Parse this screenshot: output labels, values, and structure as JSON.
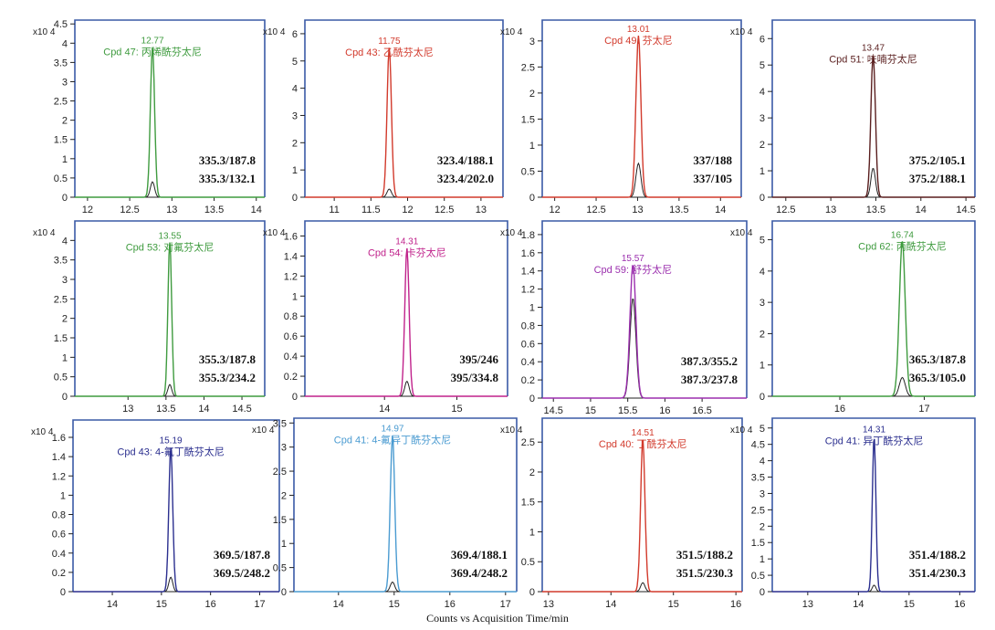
{
  "xaxis_title": "Counts vs Acquisition Time/min",
  "colors": {
    "frame": "#3a5aa6",
    "secondary_trace": "#222222"
  },
  "chart_data": [
    {
      "type": "line",
      "compound": "Cpd 47: 丙烯酰芬太尼",
      "color": "#3f9b3f",
      "rt": 12.77,
      "rt_label": "12.77",
      "scale_label": "x10 4",
      "xlim": [
        11.85,
        14.1
      ],
      "ylim": [
        0,
        4.6
      ],
      "xticks": [
        12,
        12.5,
        13,
        13.5,
        14
      ],
      "xtick_labels": [
        "12",
        "12.5",
        "13",
        "13.5",
        "14"
      ],
      "yticks": [
        0,
        0.5,
        1,
        1.5,
        2,
        2.5,
        3,
        3.5,
        4,
        4.5
      ],
      "ytick_labels": [
        "0",
        "0.5",
        "1",
        "1.5",
        "2",
        "2.5",
        "3",
        "3.5",
        "4",
        "4.5"
      ],
      "transitions": [
        "335.3/187.8",
        "335.3/132.1"
      ],
      "peaks": [
        3.9,
        0.4
      ],
      "width": 0.025
    },
    {
      "type": "line",
      "compound": "Cpd 43: 乙酰芬太尼",
      "color": "#d23a2c",
      "rt": 11.75,
      "rt_label": "11.75",
      "scale_label": "x10 4",
      "xlim": [
        10.6,
        13.3
      ],
      "ylim": [
        0,
        6.5
      ],
      "xticks": [
        11,
        11.5,
        12,
        12.5,
        13
      ],
      "xtick_labels": [
        "11",
        "11.5",
        "12",
        "12.5",
        "13"
      ],
      "yticks": [
        0,
        1,
        2,
        3,
        4,
        5,
        6
      ],
      "ytick_labels": [
        "0",
        "1",
        "2",
        "3",
        "4",
        "5",
        "6"
      ],
      "transitions": [
        "323.4/188.1",
        "323.4/202.0"
      ],
      "peaks": [
        5.5,
        0.3
      ],
      "width": 0.03
    },
    {
      "type": "line",
      "compound": "Cpd 49: 芬太尼",
      "color": "#d23a2c",
      "rt": 13.01,
      "rt_label": "13.01",
      "scale_label": "x10 4",
      "xlim": [
        11.85,
        14.25
      ],
      "ylim": [
        0,
        3.4
      ],
      "xticks": [
        12,
        12.5,
        13,
        13.5,
        14
      ],
      "xtick_labels": [
        "12",
        "12.5",
        "13",
        "13.5",
        "14"
      ],
      "yticks": [
        0,
        0.5,
        1,
        1.5,
        2,
        2.5,
        3
      ],
      "ytick_labels": [
        "0",
        "0.5",
        "1",
        "1.5",
        "2",
        "2.5",
        "3"
      ],
      "transitions": [
        "337/188",
        "337/105"
      ],
      "peaks": [
        3.1,
        0.65
      ],
      "width": 0.03
    },
    {
      "type": "line",
      "compound": "Cpd 51: 呋喃芬太尼",
      "color": "#5a1f1f",
      "rt": 13.47,
      "rt_label": "13.47",
      "scale_label": "x10 4",
      "xlim": [
        12.35,
        14.6
      ],
      "ylim": [
        0,
        6.7
      ],
      "xticks": [
        12.5,
        13,
        13.5,
        14,
        14.5
      ],
      "xtick_labels": [
        "12.5",
        "13",
        "13.5",
        "14",
        "14.5"
      ],
      "yticks": [
        0,
        1,
        2,
        3,
        4,
        5,
        6
      ],
      "ytick_labels": [
        "0",
        "1",
        "2",
        "3",
        "4",
        "5",
        "6"
      ],
      "transitions": [
        "375.2/105.1",
        "375.2/188.1"
      ],
      "peaks": [
        5.4,
        1.1
      ],
      "width": 0.025
    },
    {
      "type": "line",
      "compound": "Cpd 53: 对氟芬太尼",
      "color": "#3f9b3f",
      "rt": 13.55,
      "rt_label": "13.55",
      "scale_label": "x10 4",
      "xlim": [
        12.3,
        14.8
      ],
      "ylim": [
        0,
        4.5
      ],
      "xticks": [
        13,
        13.5,
        14,
        14.5
      ],
      "xtick_labels": [
        "13",
        "13.5",
        "14",
        "14.5"
      ],
      "yticks": [
        0,
        0.5,
        1,
        1.5,
        2,
        2.5,
        3,
        3.5,
        4
      ],
      "ytick_labels": [
        "0",
        "0.5",
        "1",
        "1.5",
        "2",
        "2.5",
        "3",
        "3.5",
        "4"
      ],
      "transitions": [
        "355.3/187.8",
        "355.3/234.2"
      ],
      "peaks": [
        3.95,
        0.3
      ],
      "width": 0.025
    },
    {
      "type": "line",
      "compound": "Cpd 54: 卡芬太尼",
      "color": "#c0228b",
      "rt": 14.31,
      "rt_label": "14.31",
      "scale_label": "x10 4",
      "xlim": [
        12.9,
        15.7
      ],
      "ylim": [
        0,
        1.75
      ],
      "xticks": [
        14,
        15
      ],
      "xtick_labels": [
        "14",
        "15"
      ],
      "yticks": [
        0,
        0.2,
        0.4,
        0.6,
        0.8,
        1,
        1.2,
        1.4,
        1.6
      ],
      "ytick_labels": [
        "0",
        "0.2",
        "0.4",
        "0.6",
        "0.8",
        "1",
        "1.2",
        "1.4",
        "1.6"
      ],
      "transitions": [
        "395/246",
        "395/334.8"
      ],
      "peaks": [
        1.48,
        0.15
      ],
      "width": 0.03
    },
    {
      "type": "line",
      "compound": "Cpd 59: 舒芬太尼",
      "color": "#9b2fae",
      "rt": 15.57,
      "rt_label": "15.57",
      "scale_label": "x10 4",
      "xlim": [
        14.35,
        17.1
      ],
      "ylim": [
        0,
        1.95
      ],
      "xticks": [
        14.5,
        15,
        15.5,
        16,
        16.5
      ],
      "xtick_labels": [
        "14.5",
        "15",
        "15.5",
        "16",
        "16.5"
      ],
      "yticks": [
        0,
        0.2,
        0.4,
        0.6,
        0.8,
        1,
        1.2,
        1.4,
        1.6,
        1.8
      ],
      "ytick_labels": [
        "0",
        "0.2",
        "0.4",
        "0.6",
        "0.8",
        "1",
        "1.2",
        "1.4",
        "1.6",
        "1.8"
      ],
      "transitions": [
        "387.3/355.2",
        "387.3/237.8"
      ],
      "peaks": [
        1.47,
        1.1
      ],
      "width": 0.04
    },
    {
      "type": "line",
      "compound": "Cpd 62: 丙酰芬太尼",
      "color": "#3f9b3f",
      "rt": 16.74,
      "rt_label": "16.74",
      "scale_label": "x10 4",
      "xlim": [
        15.2,
        17.6
      ],
      "ylim": [
        0,
        5.6
      ],
      "xticks": [
        16,
        17
      ],
      "xtick_labels": [
        "16",
        "17"
      ],
      "yticks": [
        0,
        1,
        2,
        3,
        4,
        5
      ],
      "ytick_labels": [
        "0",
        "1",
        "2",
        "3",
        "4",
        "5"
      ],
      "transitions": [
        "365.3/187.8",
        "365.3/105.0"
      ],
      "peaks": [
        4.95,
        0.6
      ],
      "width": 0.035
    },
    {
      "type": "line",
      "compound": "Cpd 43: 4-氟丁酰芬太尼",
      "color": "#2b2f8f",
      "rt": 15.19,
      "rt_label": "15.19",
      "scale_label": "x10 4",
      "xlim": [
        13.2,
        17.4
      ],
      "ylim": [
        0,
        1.78
      ],
      "xticks": [
        14,
        15,
        16,
        17
      ],
      "xtick_labels": [
        "14",
        "15",
        "16",
        "17"
      ],
      "yticks": [
        0,
        0.2,
        0.4,
        0.6,
        0.8,
        1,
        1.2,
        1.4,
        1.6
      ],
      "ytick_labels": [
        "0",
        "0.2",
        "0.4",
        "0.6",
        "0.8",
        "1",
        "1.2",
        "1.4",
        "1.6"
      ],
      "transitions": [
        "369.5/187.8",
        "369.5/248.2"
      ],
      "peaks": [
        1.5,
        0.15
      ],
      "width": 0.04
    },
    {
      "type": "line",
      "compound": "Cpd 41: 4-氟异丁酰芬太尼",
      "color": "#4a9bd1",
      "rt": 14.97,
      "rt_label": "14.97",
      "scale_label": "x10 4",
      "xlim": [
        13.2,
        17.2
      ],
      "ylim": [
        0,
        3.6
      ],
      "xticks": [
        14,
        15,
        16,
        17
      ],
      "xtick_labels": [
        "14",
        "15",
        "16",
        "17"
      ],
      "yticks": [
        0,
        0.5,
        1,
        1.5,
        2,
        2.5,
        3,
        3.5
      ],
      "ytick_labels": [
        "0",
        "0.5",
        "1",
        "1.5",
        "2",
        "2.5",
        "3",
        "3.5"
      ],
      "transitions": [
        "369.4/188.1",
        "369.4/248.2"
      ],
      "peaks": [
        3.25,
        0.2
      ],
      "width": 0.04
    },
    {
      "type": "line",
      "compound": "Cpd 40: 丁酰芬太尼",
      "color": "#d23a2c",
      "rt": 14.51,
      "rt_label": "14.51",
      "scale_label": "x10 4",
      "xlim": [
        12.9,
        16.1
      ],
      "ylim": [
        0,
        2.9
      ],
      "xticks": [
        13,
        14,
        15,
        16
      ],
      "xtick_labels": [
        "13",
        "14",
        "15",
        "16"
      ],
      "yticks": [
        0,
        0.5,
        1,
        1.5,
        2,
        2.5
      ],
      "ytick_labels": [
        "0",
        "0.5",
        "1",
        "1.5",
        "2",
        "2.5"
      ],
      "transitions": [
        "351.5/188.2",
        "351.5/230.3"
      ],
      "peaks": [
        2.55,
        0.15
      ],
      "width": 0.035
    },
    {
      "type": "line",
      "compound": "Cpd 41: 异丁酰芬太尼",
      "color": "#2b2f8f",
      "rt": 14.31,
      "rt_label": "14.31",
      "scale_label": "x10 4",
      "xlim": [
        12.3,
        16.3
      ],
      "ylim": [
        0,
        5.3
      ],
      "xticks": [
        13,
        14,
        15,
        16
      ],
      "xtick_labels": [
        "13",
        "14",
        "15",
        "16"
      ],
      "yticks": [
        0,
        0.5,
        1,
        1.5,
        2,
        2.5,
        3,
        3.5,
        4,
        4.5,
        5
      ],
      "ytick_labels": [
        "0",
        "0.5",
        "1",
        "1.5",
        "2",
        "2.5",
        "3",
        "3.5",
        "4",
        "4.5",
        "5"
      ],
      "transitions": [
        "351.4/188.2",
        "351.4/230.3"
      ],
      "peaks": [
        4.75,
        0.2
      ],
      "width": 0.035
    }
  ]
}
